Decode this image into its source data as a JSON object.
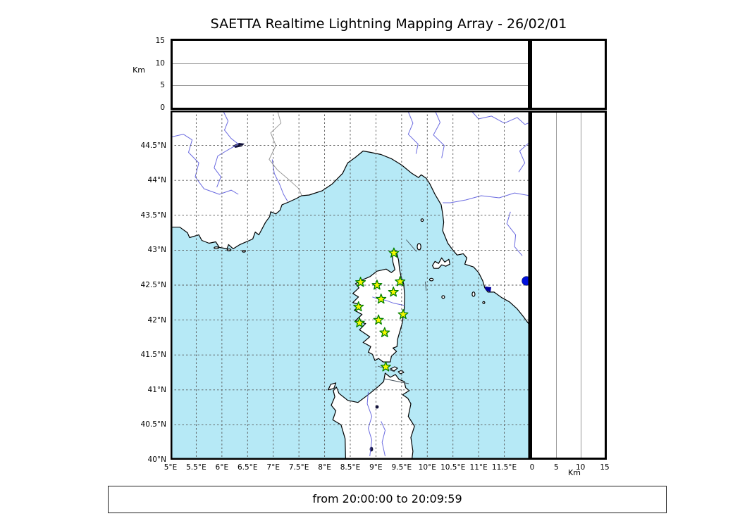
{
  "title": "SAETTA Realtime Lightning Mapping Array - 26/02/01",
  "status_bar": {
    "text": "from 20:00:00 to 20:09:59"
  },
  "altitude_axis": {
    "label": "Km",
    "min": 0,
    "max": 15,
    "tick_values": [
      0,
      5,
      10,
      15
    ],
    "tick_labels": [
      "0",
      "5",
      "10",
      "15"
    ],
    "gridlines": [
      5,
      10
    ]
  },
  "map": {
    "lon_min": 5,
    "lon_max": 12,
    "lat_min": 40,
    "lat_max": 45,
    "grid_interval_deg": 0.5,
    "lon_ticks": [
      {
        "value": 5,
        "label": "5°E"
      },
      {
        "value": 5.5,
        "label": "5.5°E"
      },
      {
        "value": 6,
        "label": "6°E"
      },
      {
        "value": 6.5,
        "label": "6.5°E"
      },
      {
        "value": 7,
        "label": "7°E"
      },
      {
        "value": 7.5,
        "label": "7.5°E"
      },
      {
        "value": 8,
        "label": "8°E"
      },
      {
        "value": 8.5,
        "label": "8.5°E"
      },
      {
        "value": 9,
        "label": "9°E"
      },
      {
        "value": 9.5,
        "label": "9.5°E"
      },
      {
        "value": 10,
        "label": "10°E"
      },
      {
        "value": 10.5,
        "label": "10.5°E"
      },
      {
        "value": 11,
        "label": "11°E"
      },
      {
        "value": 11.5,
        "label": "11.5°E"
      }
    ],
    "lat_ticks": [
      {
        "value": 40,
        "label": "40°N"
      },
      {
        "value": 40.5,
        "label": "40.5°N"
      },
      {
        "value": 41,
        "label": "41°N"
      },
      {
        "value": 41.5,
        "label": "41.5°N"
      },
      {
        "value": 42,
        "label": "42°N"
      },
      {
        "value": 42.5,
        "label": "42.5°N"
      },
      {
        "value": 43,
        "label": "43°N"
      },
      {
        "value": 43.5,
        "label": "43.5°N"
      },
      {
        "value": 44,
        "label": "44°N"
      },
      {
        "value": 44.5,
        "label": "44.5°N"
      }
    ]
  },
  "stations": [
    {
      "lon": 9.35,
      "lat": 42.96
    },
    {
      "lon": 8.7,
      "lat": 42.54
    },
    {
      "lon": 9.02,
      "lat": 42.5
    },
    {
      "lon": 9.47,
      "lat": 42.55
    },
    {
      "lon": 9.34,
      "lat": 42.4
    },
    {
      "lon": 9.1,
      "lat": 42.3
    },
    {
      "lon": 8.66,
      "lat": 42.19
    },
    {
      "lon": 9.53,
      "lat": 42.08
    },
    {
      "lon": 9.05,
      "lat": 42.0
    },
    {
      "lon": 8.68,
      "lat": 41.96
    },
    {
      "lon": 9.17,
      "lat": 41.82
    },
    {
      "lon": 9.19,
      "lat": 41.33
    }
  ],
  "event_points": [
    {
      "lon": 11.93,
      "lat": 42.56,
      "altitude_km": 0
    }
  ],
  "colors": {
    "sea": "#b6e9f6",
    "land": "#ffffff",
    "coast": "#000000",
    "river": "#6b6be0",
    "grid": "#555555",
    "panel_grid": "#999999",
    "star_fill": "#f7f700",
    "star_stroke": "#007f00",
    "event": "#0010dd",
    "lake": "#10103a",
    "lagoon": "#0000a0",
    "border_line": "#909090"
  },
  "chart_data": {
    "type": "scatter",
    "title": "SAETTA Realtime Lightning Mapping Array - 26/02/01",
    "time_window": "from 20:00:00 to 20:09:59",
    "panels": [
      {
        "name": "altitude_vs_longitude",
        "position": "top",
        "xlim": [
          5,
          12
        ],
        "ylim": [
          0,
          15
        ],
        "ylabel": "Km",
        "yticks": [
          0,
          5,
          10,
          15
        ],
        "gridlines_y": [
          5,
          10
        ],
        "points": []
      },
      {
        "name": "geographic_map",
        "position": "main",
        "xlim": [
          5,
          12
        ],
        "ylim": [
          40,
          45
        ],
        "xtick_unit": "°E",
        "ytick_unit": "°N",
        "grid": "dashed every 0.5 degree",
        "region": "Corsica, Ligurian Sea, Provence, Tuscany, northern Sardinia",
        "sensor_stations_lon_lat": [
          [
            9.35,
            42.96
          ],
          [
            8.7,
            42.54
          ],
          [
            9.02,
            42.5
          ],
          [
            9.47,
            42.55
          ],
          [
            9.34,
            42.4
          ],
          [
            9.1,
            42.3
          ],
          [
            8.66,
            42.19
          ],
          [
            9.53,
            42.08
          ],
          [
            9.05,
            42.0
          ],
          [
            8.68,
            41.96
          ],
          [
            9.17,
            41.82
          ],
          [
            9.19,
            41.33
          ]
        ],
        "lightning_points_lon_lat": [
          [
            11.93,
            42.56
          ]
        ]
      },
      {
        "name": "altitude_vs_latitude",
        "position": "right",
        "xlim": [
          0,
          15
        ],
        "ylim": [
          40,
          45
        ],
        "xlabel": "Km",
        "xticks": [
          0,
          5,
          10,
          15
        ],
        "gridlines_x": [
          5,
          10
        ],
        "points_km_lat": [
          [
            0,
            42.56
          ]
        ]
      }
    ],
    "legend_position": "none"
  }
}
